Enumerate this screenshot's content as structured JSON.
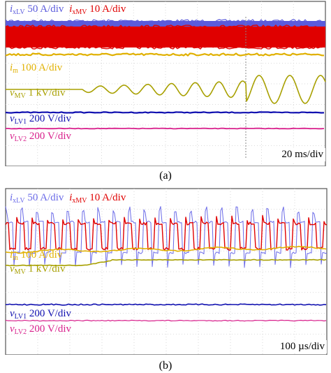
{
  "chart_data": [
    {
      "type": "line",
      "panel": "(a)",
      "caption": "(a)",
      "timebase": "20 ms/div",
      "grid": true,
      "series": [
        {
          "name": "i_xLV",
          "sym": "i",
          "sub": "xLV",
          "scale": "50 A/div",
          "color": "#5b5bdc"
        },
        {
          "name": "i_xMV",
          "sym": "i",
          "sub": "xMV",
          "scale": "10 A/div",
          "color": "#e00000"
        },
        {
          "name": "i_m",
          "sym": "i",
          "sub": "m",
          "scale": "100 A/div",
          "color": "#e0b000"
        },
        {
          "name": "v_MV",
          "sym": "v",
          "sub": "MV",
          "scale": "1 kV/div",
          "color": "#a8a000"
        },
        {
          "name": "v_LV1",
          "sym": "v",
          "sub": "LV1",
          "scale": "200 V/div",
          "color": "#1010b0"
        },
        {
          "name": "v_LV2",
          "sym": "v",
          "sub": "LV2",
          "scale": "200 V/div",
          "color": "#d8208c"
        }
      ]
    },
    {
      "type": "line",
      "panel": "(b)",
      "caption": "(b)",
      "timebase": "100 µs/div",
      "grid": true,
      "series": [
        {
          "name": "i_xLV",
          "sym": "i",
          "sub": "xLV",
          "scale": "50 A/div",
          "color": "#6b6be8"
        },
        {
          "name": "i_xMV",
          "sym": "i",
          "sub": "xMV",
          "scale": "10 A/div",
          "color": "#e00000"
        },
        {
          "name": "i_m",
          "sym": "i",
          "sub": "m",
          "scale": "100 A/div",
          "color": "#e0b000"
        },
        {
          "name": "v_MV",
          "sym": "v",
          "sub": "MV",
          "scale": "1 kV/div",
          "color": "#a8a000"
        },
        {
          "name": "v_LV1",
          "sym": "v",
          "sub": "LV1",
          "scale": "200 V/div",
          "color": "#1010b0"
        },
        {
          "name": "v_LV2",
          "sym": "v",
          "sub": "LV2",
          "scale": "200 V/div",
          "color": "#d8208c"
        }
      ]
    }
  ]
}
